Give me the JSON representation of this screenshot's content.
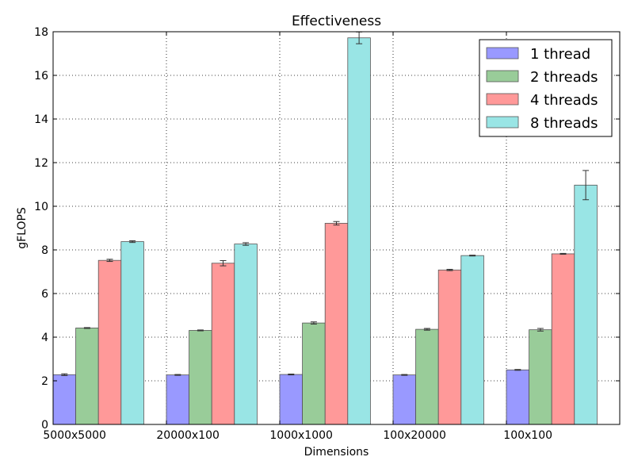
{
  "chart_data": {
    "type": "bar",
    "title": "Effectiveness",
    "xlabel": "Dimensions",
    "ylabel": "gFLOPS",
    "ylim": [
      0,
      18
    ],
    "yticks": [
      0,
      2,
      4,
      6,
      8,
      10,
      12,
      14,
      16,
      18
    ],
    "grid": true,
    "legend_position": "top-right",
    "categories": [
      "5000x5000",
      "20000x100",
      "1000x1000",
      "100x20000",
      "100x100"
    ],
    "series": [
      {
        "name": "1 thread",
        "color": "#9999ff",
        "values": [
          2.28,
          2.27,
          2.29,
          2.27,
          2.5
        ],
        "errors": [
          0.04,
          0.02,
          0.02,
          0.02,
          0.02
        ]
      },
      {
        "name": "2 threads",
        "color": "#99cc99",
        "values": [
          4.42,
          4.31,
          4.65,
          4.36,
          4.34
        ],
        "errors": [
          0.02,
          0.02,
          0.05,
          0.04,
          0.06
        ]
      },
      {
        "name": "4 threads",
        "color": "#ff9999",
        "values": [
          7.52,
          7.39,
          9.22,
          7.08,
          7.82
        ],
        "errors": [
          0.05,
          0.12,
          0.08,
          0.03,
          0.02
        ]
      },
      {
        "name": "8 threads",
        "color": "#99e5e5",
        "values": [
          8.38,
          8.27,
          17.72,
          7.74,
          10.97
        ],
        "errors": [
          0.04,
          0.06,
          0.27,
          0.02,
          0.67
        ]
      }
    ]
  }
}
